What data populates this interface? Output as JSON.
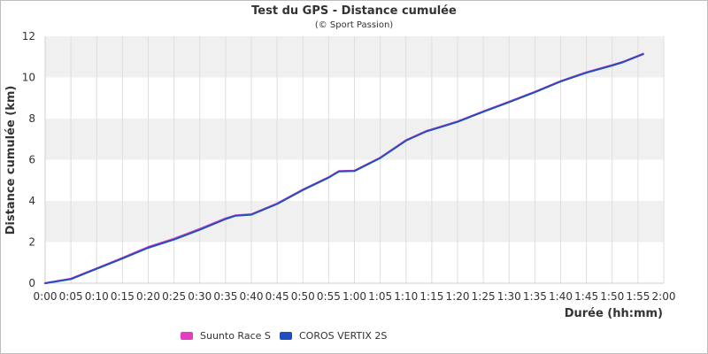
{
  "chart_data": {
    "type": "line",
    "title": "Test du GPS - Distance cumulée",
    "subtitle": "(© Sport Passion)",
    "xlabel": "Durée (hh:mm)",
    "ylabel": "Distance cumulée (km)",
    "x_unit": "minutes",
    "xlim": [
      0,
      120
    ],
    "ylim": [
      0,
      12
    ],
    "xticks": [
      "0:00",
      "0:05",
      "0:10",
      "0:15",
      "0:20",
      "0:25",
      "0:30",
      "0:35",
      "0:40",
      "0:45",
      "0:50",
      "0:55",
      "1:00",
      "1:05",
      "1:10",
      "1:15",
      "1:20",
      "1:25",
      "1:30",
      "1:35",
      "1:40",
      "1:45",
      "1:50",
      "1:55",
      "2:00"
    ],
    "yticks": [
      "0",
      "2",
      "4",
      "6",
      "8",
      "10",
      "12"
    ],
    "grid": true,
    "legend_position": "bottom",
    "x": [
      0,
      5,
      10,
      15,
      20,
      25,
      30,
      35,
      37,
      40,
      45,
      50,
      55,
      57,
      60,
      65,
      70,
      74,
      80,
      85,
      90,
      95,
      100,
      105,
      110,
      112,
      116
    ],
    "series": [
      {
        "name": "Suunto Race S",
        "color": "#e040c0",
        "values": [
          0,
          0.22,
          0.72,
          1.23,
          1.76,
          2.16,
          2.64,
          3.15,
          3.3,
          3.35,
          3.87,
          4.55,
          5.15,
          5.45,
          5.47,
          6.1,
          6.95,
          7.4,
          7.86,
          8.35,
          8.82,
          9.3,
          9.82,
          10.25,
          10.6,
          10.75,
          11.15
        ]
      },
      {
        "name": "COROS VERTIX 2S",
        "color": "#1f4fbf",
        "values": [
          0,
          0.2,
          0.7,
          1.2,
          1.72,
          2.12,
          2.6,
          3.12,
          3.28,
          3.33,
          3.85,
          4.53,
          5.13,
          5.43,
          5.45,
          6.08,
          6.93,
          7.38,
          7.84,
          8.33,
          8.8,
          9.28,
          9.8,
          10.23,
          10.58,
          10.73,
          11.13
        ]
      }
    ]
  }
}
